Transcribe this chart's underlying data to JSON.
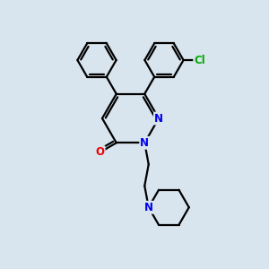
{
  "background_color": "#d8e4ee",
  "bond_color": "#000000",
  "bond_width": 1.6,
  "atom_colors": {
    "N": "#0000EE",
    "O": "#EE0000",
    "Cl": "#00AA00",
    "C": "#000000"
  },
  "font_size_atom": 8.5,
  "figsize": [
    3.0,
    3.0
  ],
  "dpi": 100
}
